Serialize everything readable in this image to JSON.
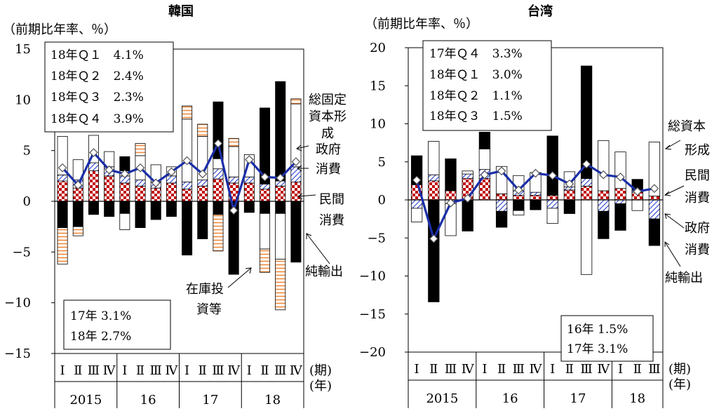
{
  "chart_data": [
    {
      "type": "bar",
      "title": "韓国",
      "ylabel": "（前期比年率、％）",
      "ylim": [
        -15,
        15
      ],
      "yticks": [
        15,
        10,
        5,
        0,
        -5,
        -10,
        -15
      ],
      "ytick_labels": [
        "15",
        "10",
        "5",
        "0",
        "−5",
        "−10",
        "−15"
      ],
      "quarter_labels": [
        "Ⅰ",
        "Ⅱ",
        "Ⅲ",
        "Ⅳ",
        "Ⅰ",
        "Ⅱ",
        "Ⅲ",
        "Ⅳ",
        "Ⅰ",
        "Ⅱ",
        "Ⅲ",
        "Ⅳ",
        "Ⅰ",
        "Ⅱ",
        "Ⅲ",
        "Ⅳ"
      ],
      "years": [
        "2015",
        "16",
        "17",
        "18"
      ],
      "period_label": "(期)",
      "year_label": "(年)",
      "series": [
        {
          "name": "民間消費",
          "pattern": "checker",
          "values": [
            2.0,
            1.3,
            3.0,
            2.5,
            1.8,
            1.5,
            1.3,
            1.8,
            1.2,
            1.5,
            2.2,
            1.8,
            1.8,
            1.2,
            1.5,
            1.9
          ]
        },
        {
          "name": "政府消費",
          "pattern": "hatch",
          "values": [
            0.6,
            0.8,
            0.8,
            0.9,
            0.7,
            0.6,
            0.6,
            0.7,
            0.7,
            0.6,
            1.0,
            0.6,
            0.6,
            0.5,
            0.5,
            1.5
          ]
        },
        {
          "name": "総固定資本形成",
          "pattern": "white",
          "values": [
            3.8,
            2.0,
            2.7,
            1.5,
            0.5,
            2.4,
            1.7,
            0.9,
            6.2,
            4.3,
            1.0,
            3.0,
            2.2,
            0.0,
            0.0,
            6.2
          ]
        },
        {
          "name": "在庫投資等",
          "pattern": "stripe",
          "values": [
            0.0,
            0.0,
            0.0,
            0.0,
            0.0,
            1.2,
            0.0,
            0.0,
            1.3,
            1.2,
            0.0,
            0.8,
            0.0,
            0.0,
            0.0,
            0.5
          ]
        },
        {
          "name": "純輸出",
          "pattern": "black",
          "values": [
            -2.6,
            -2.5,
            -1.3,
            -1.5,
            -1.2,
            -2.6,
            -1.8,
            -1.5,
            -5.3,
            -3.7,
            -1.3,
            -7.2,
            -1.1,
            -1.2,
            -1.2,
            -6.0
          ]
        },
        {
          "name": "negative-white",
          "pattern": "white",
          "values": [
            0,
            0,
            0,
            0,
            -1.6,
            0,
            0,
            0,
            0,
            0,
            0,
            0,
            0,
            -3.5,
            -4.5,
            0
          ]
        },
        {
          "name": "negative-stripe",
          "pattern": "stripe",
          "values": [
            -3.6,
            -0.9,
            0,
            0,
            0,
            0,
            0,
            0,
            0,
            0,
            -3.6,
            0,
            0,
            -2.3,
            -5.0,
            0
          ]
        },
        {
          "name": "positive-black",
          "pattern": "black",
          "values": [
            0,
            0,
            0,
            0,
            1.4,
            0,
            0,
            0,
            0,
            0,
            5.6,
            0,
            0,
            7.5,
            9.8,
            0
          ]
        },
        {
          "name": "GDP",
          "type": "line",
          "color": "#1a2ea8",
          "values": [
            3.3,
            1.6,
            4.8,
            3.1,
            2.7,
            3.3,
            1.8,
            2.9,
            4.0,
            2.7,
            5.7,
            -0.9,
            4.1,
            2.4,
            2.3,
            3.9
          ]
        }
      ],
      "legend_top": [
        "18年Ｑ１　4.1%",
        "18年Ｑ２　2.4%",
        "18年Ｑ３　2.3%",
        "18年Ｑ４　3.9%"
      ],
      "legend_bottom": [
        "17年 3.1%",
        "18年 2.7%"
      ],
      "annotations": {
        "investment": [
          "総固定",
          "資本形",
          "成"
        ],
        "government": [
          "政府",
          "消費"
        ],
        "private": [
          "民間",
          "消費"
        ],
        "netexports": "純輸出",
        "inventory": [
          "在庫投",
          "資等"
        ]
      }
    },
    {
      "type": "bar",
      "title": "台湾",
      "ylabel": "（前期比年率、％）",
      "ylim": [
        -20,
        20
      ],
      "yticks": [
        20,
        15,
        10,
        5,
        0,
        -5,
        -10,
        -15,
        -20
      ],
      "ytick_labels": [
        "20",
        "15",
        "10",
        "5",
        "0",
        "−5",
        "−10",
        "−15",
        "−20"
      ],
      "quarter_labels": [
        "Ⅰ",
        "Ⅱ",
        "Ⅲ",
        "Ⅳ",
        "Ⅰ",
        "Ⅱ",
        "Ⅲ",
        "Ⅳ",
        "Ⅰ",
        "Ⅱ",
        "Ⅲ",
        "Ⅳ",
        "Ⅰ",
        "Ⅱ",
        "Ⅲ"
      ],
      "years": [
        "2015",
        "16",
        "17",
        "18"
      ],
      "period_label": "(期)",
      "year_label": "(年)",
      "series": [
        {
          "name": "民間消費",
          "pattern": "checker",
          "values": [
            2.0,
            2.5,
            1.2,
            2.8,
            2.8,
            0.8,
            0.6,
            0.6,
            0.6,
            1.3,
            1.8,
            1.2,
            1.5,
            1.0,
            0.5
          ]
        },
        {
          "name": "政府消費",
          "pattern": "hatch",
          "values": [
            -1.1,
            0.8,
            -0.5,
            0.6,
            1.2,
            -1.5,
            0.6,
            0.4,
            -1.1,
            0.4,
            1.0,
            -1.5,
            -0.5,
            0.3,
            -2.5
          ]
        },
        {
          "name": "総資本形成",
          "pattern": "white",
          "values": [
            -1.8,
            4.4,
            0.0,
            0.4,
            2.7,
            3.6,
            2.0,
            2.6,
            0,
            2.0,
            0,
            6.6,
            4.8,
            0,
            7.1
          ]
        },
        {
          "name": "純輸出",
          "pattern": "black",
          "values": [
            3.8,
            -13.4,
            4.2,
            -4.1,
            2.2,
            -2.1,
            -1.4,
            -1.3,
            7.8,
            -1.8,
            14.8,
            -3.6,
            -3.5,
            1.4,
            -3.5
          ]
        },
        {
          "name": "negative-white",
          "pattern": "white",
          "values": [
            0,
            0,
            -4.2,
            0,
            0,
            0,
            -0.6,
            0,
            -2.0,
            0,
            -9.8,
            0,
            0,
            -1.4,
            0
          ]
        },
        {
          "name": "GDP",
          "type": "line",
          "color": "#1a2ea8",
          "values": [
            2.6,
            -5.1,
            -0.4,
            0.2,
            3.3,
            3.8,
            1.3,
            3.5,
            3.2,
            2.1,
            4.7,
            3.3,
            3.0,
            1.1,
            1.5
          ]
        }
      ],
      "legend_top": [
        "17年Ｑ４　3.3%",
        "18年Ｑ１　3.0%",
        "18年Ｑ２　1.1%",
        "18年Ｑ３　1.5%"
      ],
      "legend_bottom": [
        "16年 1.5%",
        "17年 3.1%"
      ],
      "annotations": {
        "investment": [
          "総資本",
          "形成"
        ],
        "private": [
          "民間",
          "消費"
        ],
        "government": [
          "政府",
          "消費"
        ],
        "netexports": "純輸出"
      }
    }
  ]
}
